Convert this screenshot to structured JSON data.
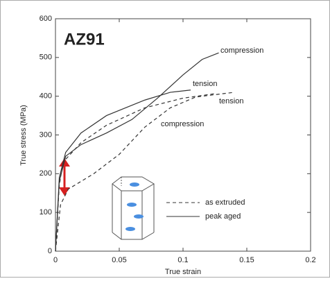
{
  "chart_data": {
    "type": "line",
    "title": "AZ91",
    "xlabel": "True strain",
    "ylabel": "True stress (MPa)",
    "xlim": [
      0,
      0.2
    ],
    "ylim": [
      0,
      600
    ],
    "xticks": [
      0,
      0.05,
      0.1,
      0.15,
      0.2
    ],
    "yticks": [
      0,
      100,
      200,
      300,
      400,
      500,
      600
    ],
    "grid": false,
    "color": "#333333",
    "series": [
      {
        "dashed": false,
        "x": [
          0,
          0.003,
          0.008,
          0.02,
          0.04,
          0.06,
          0.08,
          0.1,
          0.115,
          0.128
        ],
        "values": [
          0,
          180,
          245,
          275,
          305,
          340,
          395,
          455,
          495,
          512
        ]
      },
      {
        "dashed": false,
        "x": [
          0,
          0.003,
          0.008,
          0.02,
          0.04,
          0.07,
          0.09,
          0.106
        ],
        "values": [
          0,
          190,
          255,
          305,
          350,
          390,
          410,
          416
        ]
      },
      {
        "dashed": true,
        "x": [
          0,
          0.003,
          0.006,
          0.02,
          0.04,
          0.07,
          0.1,
          0.126
        ],
        "values": [
          0,
          170,
          230,
          280,
          325,
          370,
          395,
          407
        ]
      },
      {
        "dashed": true,
        "x": [
          0,
          0.004,
          0.01,
          0.03,
          0.05,
          0.07,
          0.09,
          0.11,
          0.14
        ],
        "values": [
          0,
          120,
          160,
          200,
          250,
          320,
          370,
          398,
          410
        ]
      }
    ],
    "annotations": [
      "compression",
      "tension",
      "tension",
      "compression"
    ],
    "legend": [
      {
        "label": "as extruded",
        "dashed": true
      },
      {
        "label": "peak aged",
        "dashed": false
      }
    ]
  }
}
